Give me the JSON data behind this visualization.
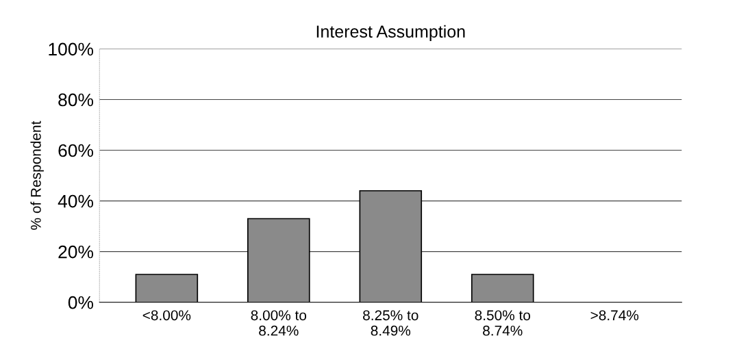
{
  "chart_data": {
    "type": "bar",
    "title": "Interest Assumption",
    "ylabel": "% of Respondent",
    "categories": [
      "<8.00%",
      "8.00% to\n8.24%",
      "8.25% to\n8.49%",
      "8.50% to\n8.74%",
      ">8.74%"
    ],
    "values": [
      11,
      33,
      44,
      11,
      0
    ],
    "color": "#8a8a8a",
    "ylim": [
      0,
      100
    ],
    "yticks": [
      {
        "value": 0,
        "label": "0%"
      },
      {
        "value": 20,
        "label": "20%"
      },
      {
        "value": 40,
        "label": "40%"
      },
      {
        "value": 60,
        "label": "60%"
      },
      {
        "value": 80,
        "label": "80%"
      },
      {
        "value": 100,
        "label": "100%"
      }
    ],
    "grid": "y",
    "legend": false
  }
}
